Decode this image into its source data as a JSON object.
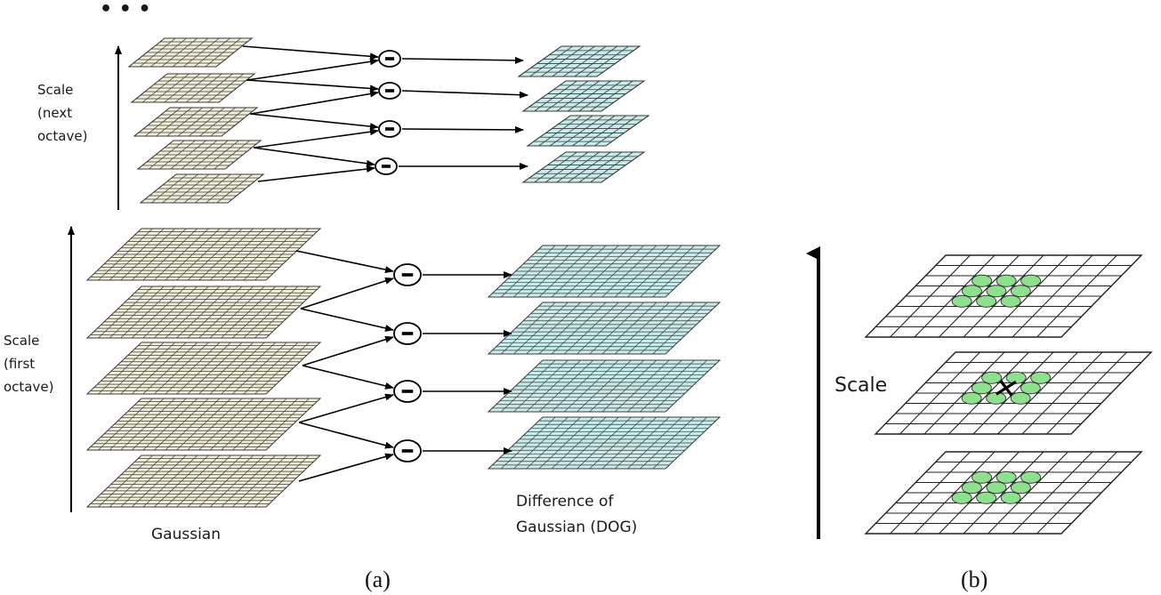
{
  "panel_a": {
    "ellipsis": "• • •",
    "next_octave_label": [
      "Scale",
      "(next",
      "octave)"
    ],
    "first_octave_label": [
      "Scale",
      "(first",
      "octave)"
    ],
    "gaussian_label": "Gaussian",
    "dog_label": [
      "Difference of",
      "Gaussian (DOG)"
    ],
    "minus_symbol": "−",
    "caption": "(a)",
    "colors": {
      "gaussian": "#f3f0da",
      "dog": "#c8ecec",
      "grid_line": "#3a3a3a"
    }
  },
  "panel_b": {
    "scale_label": "Scale",
    "caption": "(b)",
    "center_marker": "×",
    "colors": {
      "neighbor": "#8ee08e",
      "grid": "#ffffff"
    }
  }
}
